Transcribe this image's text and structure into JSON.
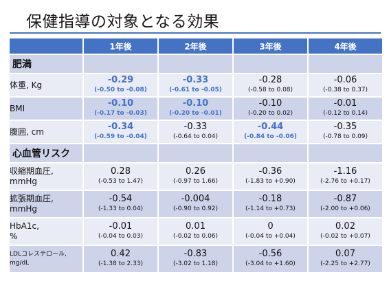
{
  "title": "保健指導の対象となる効果",
  "headers": [
    "",
    "1年後",
    "2年後",
    "3年後",
    "4年後"
  ],
  "sections": [
    {
      "label": "肥満",
      "rows": [
        {
          "label": "体重, Kg",
          "cells": [
            {
              "v": "-0.29",
              "ci": "(-0.50 to -0.08)",
              "hl": true
            },
            {
              "v": "-0.33",
              "ci": "(-0.61 to -0.05)",
              "hl": true
            },
            {
              "v": "-0.28",
              "ci": "(-0.58 to 0.08)",
              "hl": false
            },
            {
              "v": "-0.06",
              "ci": "(-0.38 to 0.37)",
              "hl": false
            }
          ]
        },
        {
          "label": "BMI",
          "cells": [
            {
              "v": "-0.10",
              "ci": "(-0.17 to -0.03)",
              "hl": true
            },
            {
              "v": "-0.10",
              "ci": "(-0.20 to -0.01)",
              "hl": true
            },
            {
              "v": "-0.10",
              "ci": "(-0.20 to 0.02)",
              "hl": false
            },
            {
              "v": "-0.01",
              "ci": "(-0.12 to 0.14)",
              "hl": false
            }
          ]
        },
        {
          "label": "腹囲, cm",
          "cells": [
            {
              "v": "-0.34",
              "ci": "(-0.59 to -0.04)",
              "hl": true
            },
            {
              "v": "-0.33",
              "ci": "(-0.64 to 0.04)",
              "hl": false
            },
            {
              "v": "-0.44",
              "ci": "(-0.84 to -0.06)",
              "hl": true
            },
            {
              "v": "-0.35",
              "ci": "(-0.78 to 0.09)",
              "hl": false
            }
          ]
        }
      ]
    },
    {
      "label": "心血管リスク",
      "rows": [
        {
          "label": "収縮期血圧,\nmmHg",
          "cells": [
            {
              "v": "0.28",
              "ci": "(-0.53 to 1.47)",
              "hl": false
            },
            {
              "v": "0.26",
              "ci": "(-0.97 to 1.66)",
              "hl": false
            },
            {
              "v": "-0.36",
              "ci": "(-1.83 to +0.90)",
              "hl": false
            },
            {
              "v": "-1.16",
              "ci": "(-2.76 to +0.17)",
              "hl": false
            }
          ]
        },
        {
          "label": "拡張期血圧,\nmmHg",
          "cells": [
            {
              "v": "-0.54",
              "ci": "(-1.33 to 0.04)",
              "hl": false
            },
            {
              "v": "-0.004",
              "ci": "(-0.90 to 0.92)",
              "hl": false
            },
            {
              "v": "-0.18",
              "ci": "(-1.14 to +0.73)",
              "hl": false
            },
            {
              "v": "-0.87",
              "ci": "(-2.00 to +0.06)",
              "hl": false
            }
          ]
        },
        {
          "label": "HbA1c,\n%",
          "cells": [
            {
              "v": "-0.01",
              "ci": "(-0.04 to 0.03)",
              "hl": false
            },
            {
              "v": "0.01",
              "ci": "(-0.02 to 0.06)",
              "hl": false
            },
            {
              "v": "0",
              "ci": "(-0.04 to +0.04)",
              "hl": false
            },
            {
              "v": "0.02",
              "ci": "(-0.02 to +0.07)",
              "hl": false
            }
          ]
        },
        {
          "label": "LDLコレステロール,\nmg/dL",
          "small": true,
          "cells": [
            {
              "v": "0.42",
              "ci": "(-1.38 to 2.33)",
              "hl": false
            },
            {
              "v": "-0.83",
              "ci": "(-3.02 to 1.18)",
              "hl": false
            },
            {
              "v": "-0.56",
              "ci": "(-3.04 to +1.60)",
              "hl": false
            },
            {
              "v": "0.07",
              "ci": "(-2.25 to +2.77)",
              "hl": false
            }
          ]
        }
      ]
    }
  ]
}
